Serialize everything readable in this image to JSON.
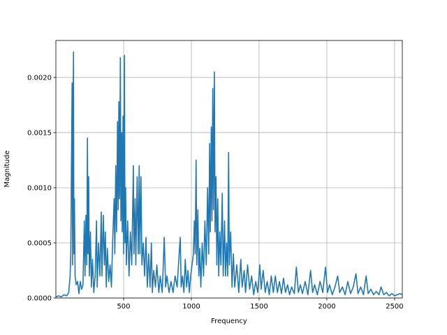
{
  "chart_data": {
    "type": "line",
    "xlabel": "Frequency",
    "ylabel": "Magnitude",
    "color": "#1f77b4",
    "grid": true,
    "xlim": [
      0,
      2557
    ],
    "ylim": [
      0,
      0.002335
    ],
    "xticks": [
      500,
      1000,
      1500,
      2000,
      2500
    ],
    "yticks": [
      {
        "value": 0,
        "label": "0.0000"
      },
      {
        "value": 0.0005,
        "label": "0.0005"
      },
      {
        "value": 0.001,
        "label": "0.0010"
      },
      {
        "value": 0.0015,
        "label": "0.0015"
      },
      {
        "value": 0.002,
        "label": "0.0020"
      }
    ],
    "x": [
      0,
      20,
      40,
      60,
      80,
      95,
      105,
      110,
      115,
      120,
      123,
      127,
      130,
      133,
      137,
      142,
      150,
      160,
      170,
      180,
      190,
      200,
      210,
      215,
      222,
      228,
      233,
      237,
      242,
      247,
      255,
      262,
      270,
      280,
      290,
      300,
      305,
      315,
      325,
      335,
      340,
      350,
      358,
      365,
      372,
      380,
      390,
      400,
      410,
      420,
      430,
      435,
      442,
      448,
      455,
      460,
      465,
      470,
      476,
      480,
      486,
      490,
      496,
      500,
      506,
      510,
      515,
      520,
      530,
      540,
      550,
      560,
      572,
      576,
      585,
      590,
      600,
      608,
      615,
      620,
      628,
      635,
      645,
      655,
      665,
      675,
      685,
      695,
      705,
      712,
      722,
      735,
      745,
      760,
      770,
      785,
      800,
      810,
      820,
      835,
      850,
      865,
      880,
      895,
      910,
      918,
      925,
      935,
      945,
      955,
      965,
      975,
      985,
      995,
      1005,
      1015,
      1022,
      1028,
      1035,
      1040,
      1048,
      1055,
      1062,
      1070,
      1080,
      1090,
      1100,
      1110,
      1120,
      1128,
      1135,
      1140,
      1147,
      1152,
      1158,
      1163,
      1170,
      1175,
      1182,
      1188,
      1195,
      1202,
      1210,
      1218,
      1228,
      1235,
      1245,
      1252,
      1260,
      1268,
      1275,
      1280,
      1290,
      1300,
      1310,
      1320,
      1335,
      1350,
      1365,
      1375,
      1390,
      1400,
      1415,
      1430,
      1445,
      1460,
      1475,
      1490,
      1505,
      1515,
      1530,
      1545,
      1560,
      1575,
      1590,
      1605,
      1620,
      1635,
      1650,
      1665,
      1680,
      1695,
      1710,
      1725,
      1740,
      1760,
      1775,
      1790,
      1805,
      1820,
      1840,
      1860,
      1880,
      1895,
      1910,
      1930,
      1950,
      1970,
      1990,
      2005,
      2020,
      2040,
      2060,
      2080,
      2095,
      2115,
      2135,
      2155,
      2175,
      2195,
      2215,
      2230,
      2250,
      2270,
      2290,
      2305,
      2325,
      2345,
      2365,
      2385,
      2400,
      2420,
      2440,
      2460,
      2480,
      2500,
      2520,
      2540,
      2557
    ],
    "values": [
      1e-05,
      2e-05,
      1e-05,
      3e-05,
      2e-05,
      5e-05,
      0.0002,
      0.0004,
      0.0012,
      0.00195,
      0.0003,
      0.0016,
      0.00223,
      0.0004,
      0.0009,
      0.0002,
      0.00012,
      0.00015,
      4e-05,
      0.00015,
      8e-05,
      0.00012,
      0.0007,
      0.0002,
      0.00075,
      0.0003,
      0.00145,
      0.0004,
      0.0011,
      0.0002,
      0.0006,
      0.0001,
      0.00035,
      5e-05,
      0.0002,
      0.0007,
      0.0001,
      0.0005,
      0.0002,
      0.00078,
      0.0002,
      0.00075,
      0.0003,
      0.0006,
      0.0001,
      0.00045,
      0.00015,
      0.0003,
      0.0001,
      0.00055,
      0.0009,
      0.0004,
      0.0012,
      0.0006,
      0.0016,
      0.0008,
      0.00178,
      0.0009,
      0.00218,
      0.0007,
      0.0015,
      0.0006,
      0.00165,
      0.0004,
      0.0022,
      0.0005,
      0.001,
      0.0003,
      0.0007,
      0.0002,
      0.0006,
      0.0003,
      0.0012,
      0.0004,
      0.0009,
      0.0003,
      0.0011,
      0.0004,
      0.0012,
      0.0004,
      0.0011,
      0.0003,
      0.0005,
      0.0002,
      0.00055,
      0.0001,
      0.0004,
      0.0001,
      0.0005,
      5e-05,
      0.00025,
      0.0001,
      0.0003,
      5e-05,
      0.0002,
      5e-05,
      0.00055,
      0.0001,
      0.0002,
      5e-05,
      0.00015,
      5e-05,
      0.0002,
      0.0001,
      0.0004,
      0.00055,
      0.0001,
      0.0002,
      5e-05,
      0.00035,
      0.0001,
      0.00025,
      5e-05,
      0.0002,
      0.0003,
      0.0004,
      0.0007,
      0.0004,
      0.00125,
      0.0003,
      0.0008,
      0.0002,
      0.00045,
      0.0001,
      0.0005,
      0.0002,
      0.0007,
      0.0003,
      0.001,
      0.0004,
      0.0014,
      0.0006,
      0.00155,
      0.0007,
      0.0019,
      0.0008,
      0.00205,
      0.0006,
      0.0011,
      0.0003,
      0.0009,
      0.0002,
      0.0006,
      0.0003,
      0.00095,
      0.0002,
      0.0007,
      0.0002,
      0.0005,
      0.0002,
      0.00132,
      0.0003,
      0.0006,
      0.0001,
      0.0004,
      0.0001,
      0.0003,
      5e-05,
      0.00035,
      0.0001,
      0.00025,
      5e-05,
      0.0003,
      8e-05,
      0.0002,
      3e-05,
      0.00015,
      5e-05,
      0.0003,
      8e-05,
      0.00025,
      5e-05,
      0.00015,
      3e-05,
      0.0002,
      5e-05,
      0.0002,
      5e-05,
      0.00015,
      4e-05,
      0.00018,
      5e-05,
      0.00012,
      3e-05,
      0.0001,
      4e-05,
      0.00028,
      5e-05,
      0.00012,
      4e-05,
      0.00015,
      3e-05,
      0.00025,
      5e-05,
      0.00012,
      3e-05,
      0.00015,
      5e-05,
      0.00028,
      5e-05,
      0.00012,
      3e-05,
      0.0001,
      0.0002,
      5e-05,
      0.0001,
      3e-05,
      0.00015,
      4e-05,
      0.0001,
      0.00022,
      4e-05,
      0.0001,
      3e-05,
      0.0002,
      4e-05,
      8e-05,
      3e-05,
      6e-05,
      3e-05,
      0.0001,
      3e-05,
      5e-05,
      2e-05,
      4e-05,
      2e-05,
      3e-05,
      4e-05,
      3e-05
    ]
  }
}
